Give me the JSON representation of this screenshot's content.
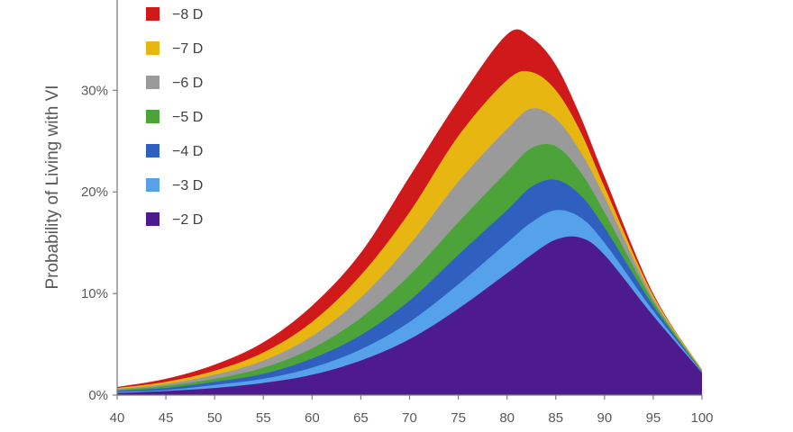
{
  "chart_data": {
    "type": "area",
    "stacked": false,
    "ylabel": "Probability of Living with VI",
    "xlabel": "",
    "xlim": [
      40,
      100
    ],
    "ylim": [
      0,
      0.38
    ],
    "x_ticks": [
      "40",
      "45",
      "50",
      "55",
      "60",
      "65",
      "70",
      "75",
      "80",
      "85",
      "90",
      "95",
      "100"
    ],
    "y_ticks": [
      "0%",
      "10%",
      "20%",
      "30%"
    ],
    "grid": false,
    "legend_position": "top-left",
    "x": [
      40,
      45,
      50,
      55,
      60,
      65,
      70,
      75,
      80,
      82.5,
      85,
      87.5,
      90,
      95,
      100
    ],
    "series": [
      {
        "name": "−8 D",
        "color": "#d0191b",
        "values": [
          0.008,
          0.016,
          0.03,
          0.052,
          0.088,
          0.14,
          0.215,
          0.29,
          0.355,
          0.352,
          0.325,
          0.275,
          0.215,
          0.1,
          0.025
        ]
      },
      {
        "name": "−7 D",
        "color": "#e8b611",
        "values": [
          0.007,
          0.013,
          0.024,
          0.042,
          0.072,
          0.118,
          0.18,
          0.255,
          0.31,
          0.318,
          0.3,
          0.26,
          0.205,
          0.098,
          0.025
        ]
      },
      {
        "name": "−6 D",
        "color": "#9a9a9a",
        "values": [
          0.006,
          0.011,
          0.02,
          0.034,
          0.058,
          0.096,
          0.148,
          0.21,
          0.262,
          0.282,
          0.272,
          0.24,
          0.195,
          0.095,
          0.024
        ]
      },
      {
        "name": "−5 D",
        "color": "#4ba33a",
        "values": [
          0.005,
          0.009,
          0.016,
          0.027,
          0.046,
          0.076,
          0.118,
          0.17,
          0.22,
          0.243,
          0.245,
          0.22,
          0.18,
          0.092,
          0.024
        ]
      },
      {
        "name": "−4 D",
        "color": "#3060bf",
        "values": [
          0.004,
          0.007,
          0.013,
          0.021,
          0.036,
          0.059,
          0.093,
          0.138,
          0.182,
          0.205,
          0.212,
          0.197,
          0.165,
          0.088,
          0.023
        ]
      },
      {
        "name": "−3 D",
        "color": "#55a1ea",
        "values": [
          0.003,
          0.005,
          0.01,
          0.016,
          0.027,
          0.045,
          0.072,
          0.109,
          0.15,
          0.17,
          0.182,
          0.175,
          0.15,
          0.083,
          0.023
        ]
      },
      {
        "name": "−2 D",
        "color": "#4e1b8f",
        "values": [
          0.002,
          0.004,
          0.007,
          0.012,
          0.02,
          0.034,
          0.055,
          0.085,
          0.12,
          0.138,
          0.153,
          0.155,
          0.138,
          0.078,
          0.022
        ]
      }
    ]
  }
}
